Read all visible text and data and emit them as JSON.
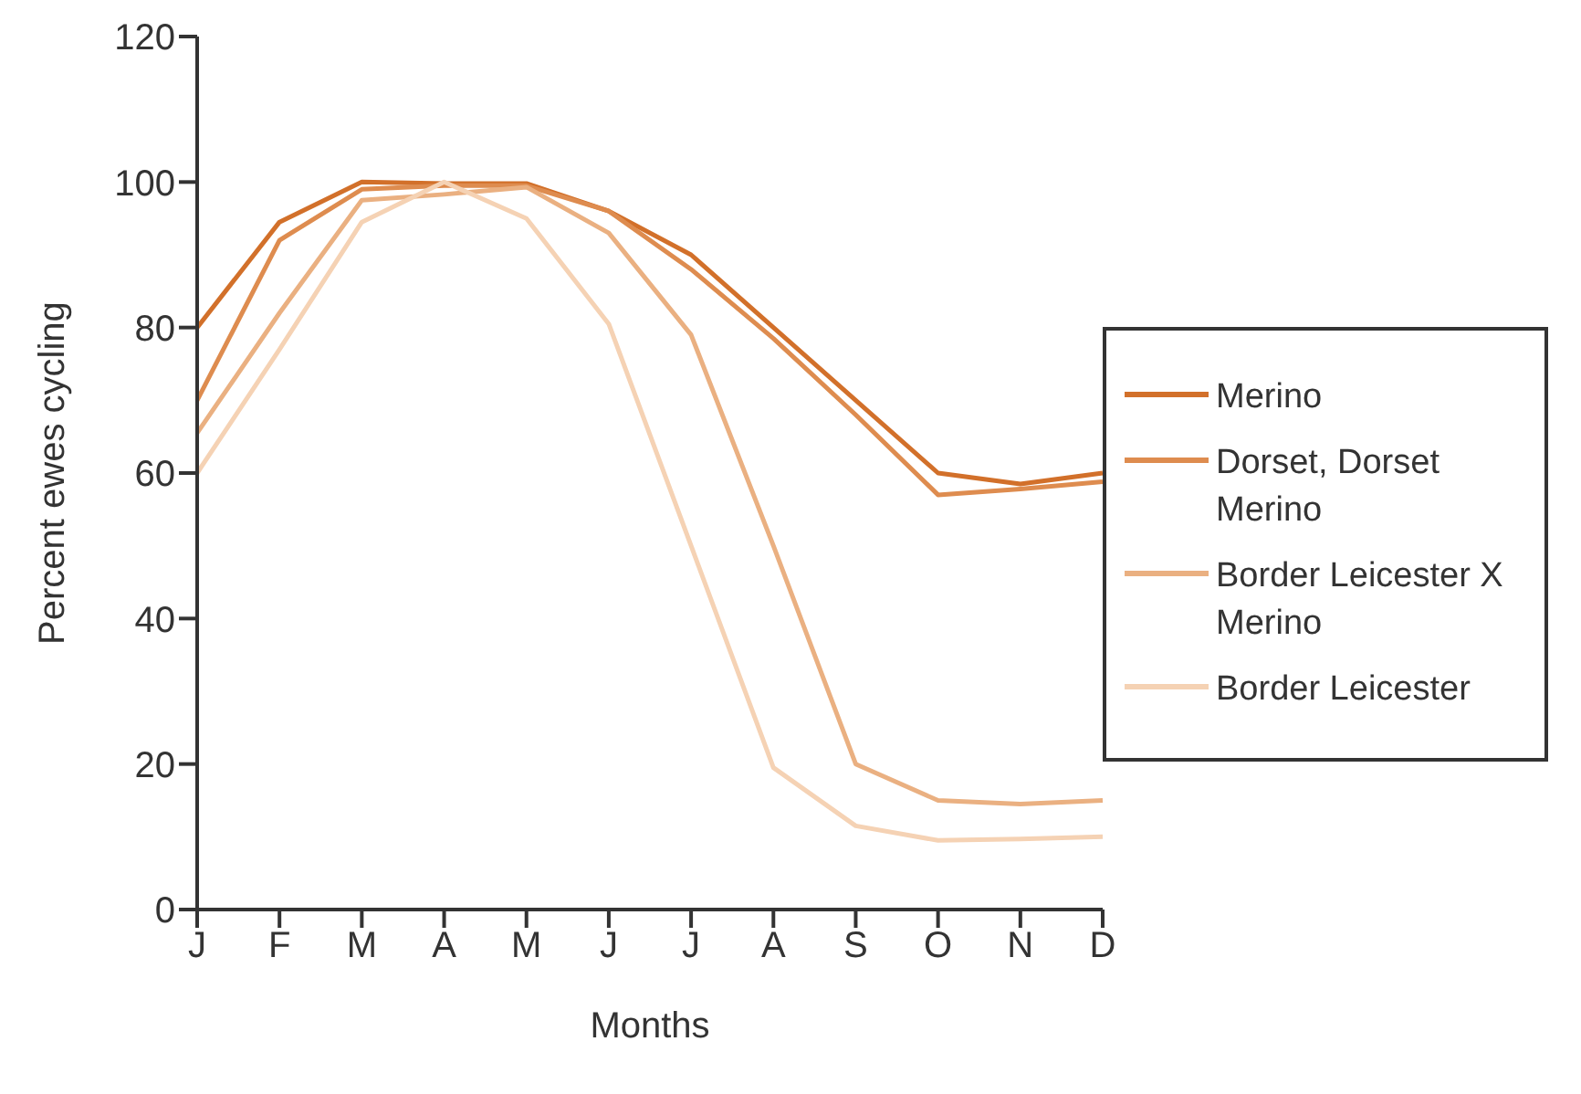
{
  "chart_data": {
    "type": "line",
    "xlabel": "Months",
    "ylabel": "Percent ewes cycling",
    "categories": [
      "J",
      "F",
      "M",
      "A",
      "M",
      "J",
      "J",
      "A",
      "S",
      "O",
      "N",
      "D"
    ],
    "series": [
      {
        "name": "Merino",
        "color": "#d2702a",
        "values": [
          80,
          94.5,
          100,
          99.8,
          99.8,
          96,
          90,
          80,
          70,
          60,
          58.5,
          60
        ]
      },
      {
        "name": "Dorset, Dorset Merino",
        "color": "#de8c4f",
        "values": [
          70,
          92,
          99,
          99.5,
          99.5,
          96,
          88,
          78.5,
          68,
          57,
          57.8,
          58.8
        ]
      },
      {
        "name": "Border Leicester X Merino",
        "color": "#eab081",
        "values": [
          65.5,
          82,
          97.5,
          98.3,
          99.3,
          93,
          79,
          50,
          20,
          15,
          14.5,
          15
        ]
      },
      {
        "name": "Border Leicester",
        "color": "#f5d2b4",
        "values": [
          60,
          77,
          94.5,
          100,
          95,
          80.5,
          50,
          19.5,
          11.5,
          9.5,
          9.7,
          10
        ]
      }
    ],
    "ylim": [
      0,
      120
    ],
    "yticks": [
      0,
      20,
      40,
      60,
      80,
      100,
      120
    ],
    "grid": false,
    "legend": "right",
    "marker": "none",
    "line_style": "solid"
  }
}
